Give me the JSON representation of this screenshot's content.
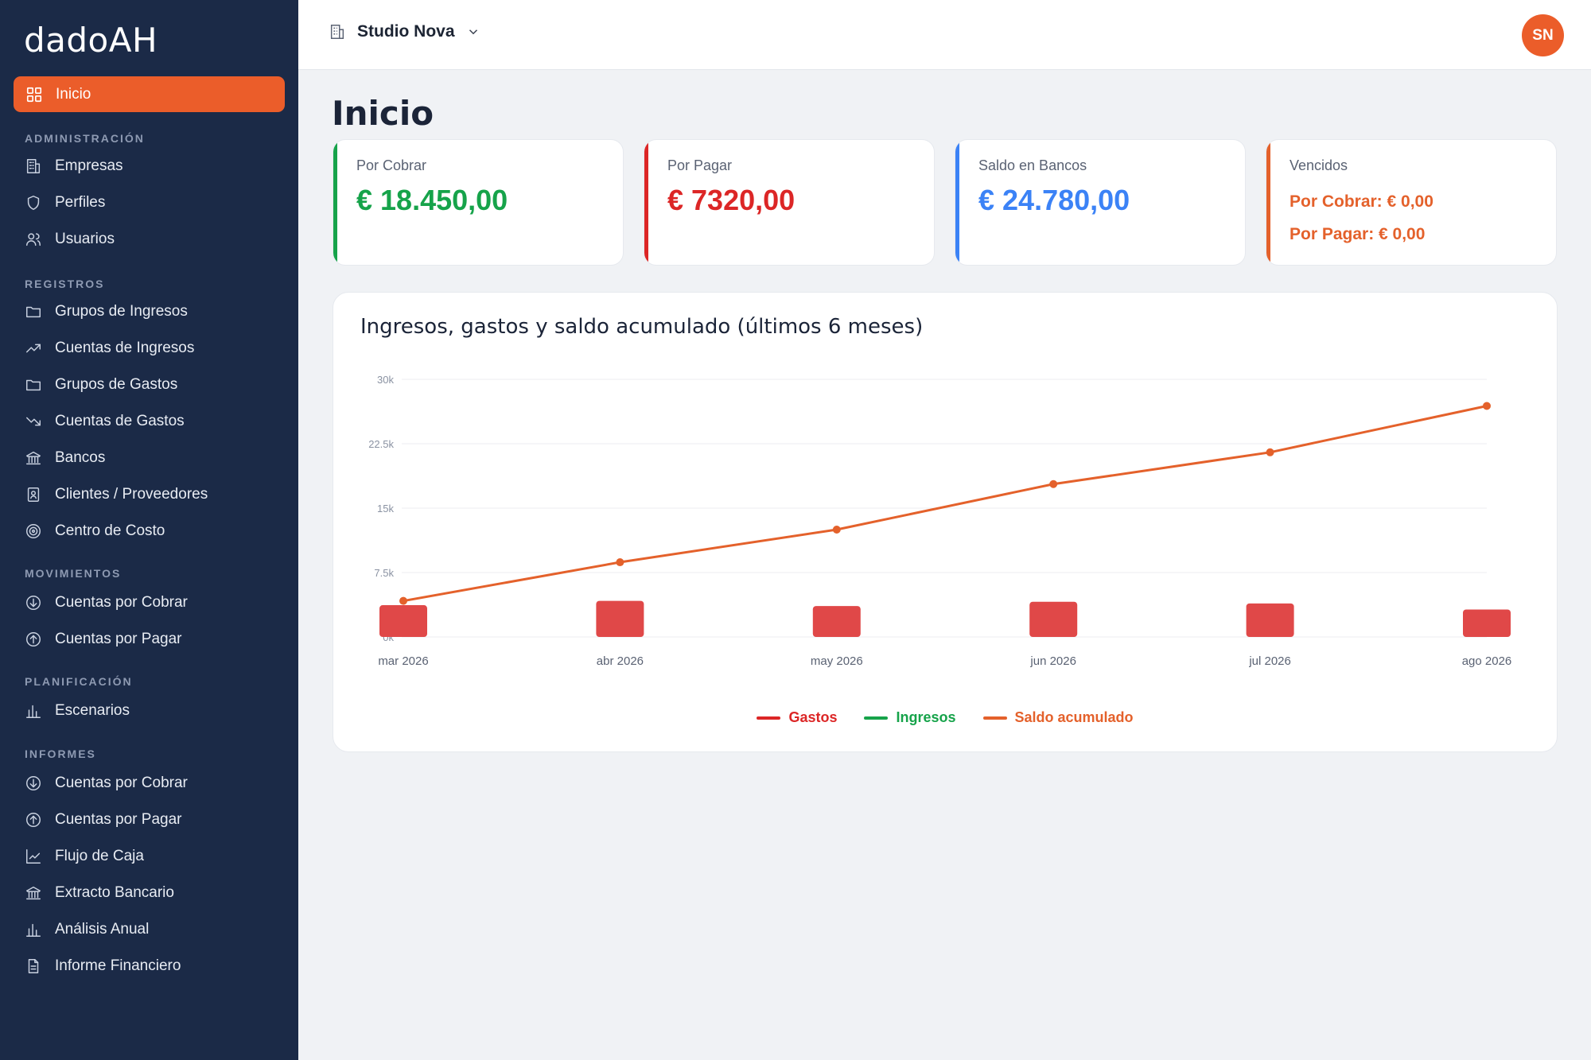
{
  "app": {
    "logo": "dadoAH"
  },
  "topbar": {
    "company": "Studio Nova",
    "avatar_initials": "SN"
  },
  "sidebar": {
    "active": {
      "label": "Inicio",
      "icon": "grid-icon"
    },
    "sections": [
      {
        "title": "ADMINISTRACIÓN",
        "items": [
          {
            "label": "Empresas",
            "icon": "building-icon"
          },
          {
            "label": "Perfiles",
            "icon": "shield-icon"
          },
          {
            "label": "Usuarios",
            "icon": "users-icon"
          }
        ]
      },
      {
        "title": "REGISTROS",
        "items": [
          {
            "label": "Grupos de Ingresos",
            "icon": "folder-icon"
          },
          {
            "label": "Cuentas de Ingresos",
            "icon": "trend-up-icon"
          },
          {
            "label": "Grupos de Gastos",
            "icon": "folder-icon"
          },
          {
            "label": "Cuentas de Gastos",
            "icon": "trend-down-icon"
          },
          {
            "label": "Bancos",
            "icon": "bank-icon"
          },
          {
            "label": "Clientes / Proveedores",
            "icon": "contact-icon"
          },
          {
            "label": "Centro de Costo",
            "icon": "target-icon"
          }
        ]
      },
      {
        "title": "MOVIMIENTOS",
        "items": [
          {
            "label": "Cuentas por Cobrar",
            "icon": "arrow-down-circle-icon"
          },
          {
            "label": "Cuentas por Pagar",
            "icon": "arrow-up-circle-icon"
          }
        ]
      },
      {
        "title": "PLANIFICACIÓN",
        "items": [
          {
            "label": "Escenarios",
            "icon": "bar-chart-icon"
          }
        ]
      },
      {
        "title": "INFORMES",
        "items": [
          {
            "label": "Cuentas por Cobrar",
            "icon": "arrow-down-circle-icon"
          },
          {
            "label": "Cuentas por Pagar",
            "icon": "arrow-up-circle-icon"
          },
          {
            "label": "Flujo de Caja",
            "icon": "line-chart-icon"
          },
          {
            "label": "Extracto Bancario",
            "icon": "bank-icon"
          },
          {
            "label": "Análisis Anual",
            "icon": "bar-chart-icon"
          },
          {
            "label": "Informe Financiero",
            "icon": "document-icon"
          }
        ]
      }
    ]
  },
  "page": {
    "title": "Inicio"
  },
  "cards": [
    {
      "label": "Por Cobrar",
      "value": "€ 18.450,00",
      "color": "#16a34a"
    },
    {
      "label": "Por Pagar",
      "value": "€ 7320,00",
      "color": "#dc2626"
    },
    {
      "label": "Saldo en Bancos",
      "value": "€ 24.780,00",
      "color": "#3b82f6"
    },
    {
      "label": "Vencidos",
      "color": "#e4612b",
      "lines": [
        "Por Cobrar: € 0,00",
        "Por Pagar: € 0,00"
      ]
    }
  ],
  "chart": {
    "title": "Ingresos, gastos y saldo acumulado (últimos 6 meses)",
    "legend": [
      {
        "name": "Gastos",
        "color": "#dc2626"
      },
      {
        "name": "Ingresos",
        "color": "#16a34a"
      },
      {
        "name": "Saldo acumulado",
        "color": "#e4612b"
      }
    ]
  },
  "chart_data": {
    "type": "bar",
    "categories": [
      "mar 2026",
      "abr 2026",
      "may 2026",
      "jun 2026",
      "jul 2026",
      "ago 2026"
    ],
    "ylim": [
      0,
      30000
    ],
    "yticks": [
      0,
      7500,
      15000,
      22500,
      30000
    ],
    "ytick_labels": [
      "0k",
      "7.5k",
      "15k",
      "22.5k",
      "30k"
    ],
    "grid": true,
    "legend_position": "bottom",
    "series": [
      {
        "name": "Gastos",
        "type": "bar",
        "color": "#e04848",
        "values": [
          3700,
          4200,
          3600,
          4100,
          3900,
          3200
        ]
      },
      {
        "name": "Ingresos",
        "type": "bar",
        "color": "#16a34a",
        "values": [
          0,
          0,
          0,
          0,
          0,
          0
        ]
      },
      {
        "name": "Saldo acumulado",
        "type": "line",
        "color": "#e4612b",
        "values": [
          4200,
          8700,
          12500,
          17800,
          21500,
          26900
        ]
      }
    ]
  }
}
